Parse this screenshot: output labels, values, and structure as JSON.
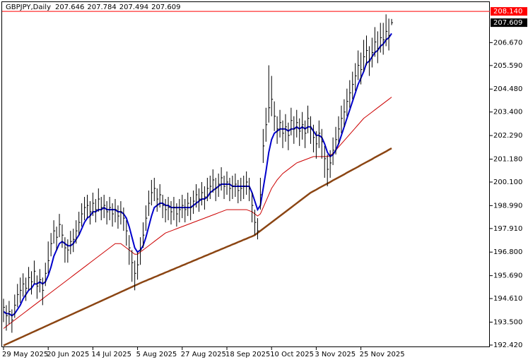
{
  "chart_data": {
    "type": "ohlc",
    "title": "GBPJPY,Daily",
    "header_quote": [
      207.646,
      207.784,
      207.494,
      207.609
    ],
    "categories": [
      "29 May 2025",
      null,
      null,
      null,
      null,
      null,
      null,
      null,
      null,
      null,
      null,
      null,
      null,
      null,
      null,
      null,
      "20 Jun 2025",
      null,
      null,
      null,
      null,
      null,
      null,
      null,
      null,
      null,
      null,
      null,
      null,
      null,
      null,
      null,
      "14 Jul 2025",
      null,
      null,
      null,
      null,
      null,
      null,
      null,
      null,
      null,
      null,
      null,
      null,
      null,
      null,
      null,
      "5 Aug 2025",
      null,
      null,
      null,
      null,
      null,
      null,
      null,
      null,
      null,
      null,
      null,
      null,
      null,
      null,
      null,
      "27 Aug 2025",
      null,
      null,
      null,
      null,
      null,
      null,
      null,
      null,
      null,
      null,
      null,
      null,
      null,
      null,
      null,
      "18 Sep 2025",
      null,
      null,
      null,
      null,
      null,
      null,
      null,
      null,
      null,
      null,
      null,
      null,
      null,
      null,
      null,
      "10 Oct 2025",
      null,
      null,
      null,
      null,
      null,
      null,
      null,
      null,
      null,
      null,
      null,
      null,
      null,
      null,
      null,
      "3 Nov 2025",
      null,
      null,
      null,
      null,
      null,
      null,
      null,
      null,
      null,
      null,
      null,
      null,
      null,
      null,
      null,
      "25 Nov 2025",
      null,
      null,
      null,
      null,
      null,
      null,
      null,
      null,
      null,
      null,
      null
    ],
    "high": [
      194.6,
      194.3,
      194.5,
      194.1,
      194.8,
      195.3,
      195.6,
      195.8,
      195.6,
      196.1,
      195.9,
      196.4,
      195.7,
      196.0,
      195.6,
      196.3,
      197.3,
      197.7,
      198.3,
      198.0,
      198.6,
      198.1,
      197.5,
      197.4,
      197.8,
      197.9,
      198.3,
      198.7,
      199.1,
      199.4,
      199.5,
      199.2,
      199.6,
      199.3,
      199.8,
      199.4,
      199.5,
      199.2,
      199.4,
      199.1,
      199.3,
      199.0,
      199.2,
      198.9,
      198.3,
      197.6,
      196.9,
      196.4,
      196.8,
      197.5,
      198.2,
      199.0,
      199.7,
      200.2,
      200.3,
      199.8,
      200.0,
      199.5,
      199.3,
      199.4,
      199.2,
      199.4,
      199.1,
      199.3,
      199.5,
      199.3,
      199.6,
      199.4,
      199.7,
      200.0,
      199.8,
      200.1,
      199.9,
      200.3,
      200.4,
      200.7,
      200.3,
      200.5,
      200.8,
      200.4,
      200.6,
      200.3,
      200.4,
      200.5,
      200.2,
      200.3,
      200.4,
      200.6,
      200.3,
      199.6,
      198.8,
      198.4,
      200.3,
      202.6,
      203.6,
      205.6,
      205.1,
      203.9,
      203.2,
      203.5,
      203.0,
      203.3,
      202.9,
      203.6,
      203.2,
      203.5,
      203.1,
      203.4,
      203.0,
      203.7,
      203.2,
      202.8,
      202.5,
      203.0,
      202.6,
      201.8,
      201.4,
      201.6,
      202.2,
      202.7,
      203.2,
      203.7,
      204.0,
      204.5,
      204.9,
      205.3,
      205.7,
      206.3,
      206.2,
      206.8,
      207.0,
      206.5,
      206.9,
      207.4,
      207.2,
      207.6,
      207.6,
      208.0,
      207.8,
      207.784
    ],
    "low": [
      193.5,
      193.1,
      193.4,
      193.0,
      193.7,
      194.2,
      194.4,
      194.7,
      194.5,
      195.0,
      194.8,
      195.3,
      194.6,
      194.9,
      194.3,
      195.2,
      195.8,
      196.6,
      197.2,
      196.9,
      197.5,
      197.0,
      196.3,
      196.3,
      196.7,
      196.8,
      197.2,
      197.6,
      198.0,
      198.3,
      198.4,
      198.1,
      198.5,
      198.2,
      198.7,
      198.3,
      198.4,
      198.1,
      198.3,
      198.0,
      198.2,
      197.9,
      198.1,
      197.8,
      197.1,
      196.2,
      195.4,
      195.0,
      195.5,
      196.2,
      197.0,
      197.8,
      198.5,
      199.0,
      199.2,
      198.7,
      198.9,
      198.4,
      198.2,
      198.3,
      198.1,
      198.3,
      198.0,
      198.2,
      198.4,
      198.2,
      198.5,
      198.3,
      198.6,
      198.9,
      198.7,
      199.0,
      198.8,
      199.2,
      199.3,
      199.6,
      199.2,
      199.4,
      199.7,
      199.3,
      199.5,
      199.2,
      199.3,
      199.4,
      199.1,
      199.2,
      199.3,
      199.5,
      199.2,
      198.2,
      197.6,
      197.4,
      198.8,
      201.0,
      202.0,
      202.9,
      203.2,
      202.5,
      201.9,
      202.2,
      201.7,
      202.0,
      201.6,
      202.3,
      201.9,
      202.2,
      201.8,
      202.1,
      201.7,
      202.4,
      201.9,
      201.5,
      201.2,
      201.7,
      201.2,
      200.3,
      199.9,
      200.3,
      200.9,
      201.4,
      201.9,
      202.4,
      202.7,
      203.2,
      203.6,
      204.0,
      204.4,
      204.9,
      204.7,
      205.3,
      205.6,
      205.1,
      205.5,
      206.0,
      205.7,
      206.2,
      206.1,
      206.5,
      206.3,
      207.494
    ],
    "close": [
      194.2,
      193.8,
      194.0,
      193.6,
      194.3,
      194.8,
      195.0,
      195.3,
      195.1,
      195.6,
      195.4,
      195.9,
      195.2,
      195.5,
      195.0,
      195.8,
      196.4,
      197.2,
      197.8,
      197.5,
      198.1,
      197.6,
      197.0,
      196.9,
      197.3,
      197.4,
      197.8,
      198.2,
      198.6,
      198.9,
      199.0,
      198.7,
      199.1,
      198.8,
      199.3,
      198.9,
      199.0,
      198.7,
      198.9,
      198.6,
      198.8,
      198.5,
      198.7,
      198.4,
      197.8,
      197.0,
      196.3,
      195.8,
      196.2,
      196.9,
      197.6,
      198.4,
      199.1,
      199.6,
      199.8,
      199.3,
      199.5,
      199.0,
      198.8,
      198.9,
      198.7,
      198.9,
      198.6,
      198.8,
      199.0,
      198.8,
      199.1,
      198.9,
      199.2,
      199.5,
      199.3,
      199.6,
      199.4,
      199.8,
      199.9,
      200.2,
      199.8,
      200.0,
      200.3,
      199.9,
      200.1,
      199.8,
      199.9,
      200.0,
      199.7,
      199.8,
      199.9,
      200.1,
      199.8,
      199.0,
      198.2,
      197.8,
      199.5,
      201.8,
      202.8,
      203.6,
      204.0,
      203.2,
      202.6,
      202.9,
      202.4,
      202.7,
      202.3,
      203.0,
      202.6,
      202.9,
      202.5,
      202.8,
      202.4,
      203.1,
      202.6,
      202.2,
      201.9,
      202.4,
      202.0,
      201.2,
      200.7,
      201.0,
      201.6,
      202.1,
      202.6,
      203.1,
      203.4,
      203.9,
      204.3,
      204.7,
      205.1,
      205.6,
      205.4,
      206.0,
      206.3,
      205.8,
      206.2,
      206.7,
      206.4,
      206.9,
      206.8,
      207.2,
      207.0,
      207.609
    ],
    "bar_color": "#000000",
    "lines": [
      {
        "color": "#8b4513",
        "values": [
          192.4,
          192.46,
          192.52,
          192.58,
          192.64,
          192.7,
          192.76,
          192.82,
          192.88,
          192.94,
          193.0,
          193.06,
          193.12,
          193.18,
          193.24,
          193.3,
          193.36,
          193.42,
          193.48,
          193.54,
          193.6,
          193.66,
          193.72,
          193.78,
          193.84,
          193.9,
          193.96,
          194.02,
          194.08,
          194.14,
          194.2,
          194.26,
          194.32,
          194.38,
          194.44,
          194.5,
          194.56,
          194.62,
          194.68,
          194.74,
          194.8,
          194.86,
          194.92,
          194.98,
          195.04,
          195.1,
          195.16,
          195.22,
          195.28,
          195.34,
          195.4,
          195.45,
          195.51,
          195.56,
          195.62,
          195.67,
          195.73,
          195.78,
          195.84,
          195.89,
          195.95,
          196.0,
          196.06,
          196.11,
          196.17,
          196.22,
          196.28,
          196.33,
          196.39,
          196.44,
          196.5,
          196.55,
          196.61,
          196.66,
          196.72,
          196.77,
          196.83,
          196.88,
          196.94,
          196.99,
          197.05,
          197.1,
          197.16,
          197.21,
          197.27,
          197.32,
          197.38,
          197.43,
          197.49,
          197.54,
          197.6,
          197.7,
          197.8,
          197.9,
          198.0,
          198.1,
          198.2,
          198.3,
          198.4,
          198.5,
          198.6,
          198.7,
          198.8,
          198.9,
          199.0,
          199.1,
          199.2,
          199.3,
          199.4,
          199.5,
          199.6,
          199.67,
          199.74,
          199.82,
          199.89,
          199.96,
          200.03,
          200.1,
          200.18,
          200.25,
          200.32,
          200.39,
          200.46,
          200.54,
          200.61,
          200.68,
          200.75,
          200.82,
          200.9,
          200.97,
          201.04,
          201.11,
          201.18,
          201.26,
          201.33,
          201.4,
          201.47,
          201.54,
          201.62,
          201.69
        ],
        "width": 2.5
      },
      {
        "color": "#cc0000",
        "values": [
          193.2,
          193.3,
          193.4,
          193.5,
          193.6,
          193.7,
          193.8,
          193.9,
          194.0,
          194.1,
          194.2,
          194.3,
          194.4,
          194.5,
          194.6,
          194.7,
          194.8,
          194.9,
          195.0,
          195.1,
          195.2,
          195.3,
          195.4,
          195.5,
          195.6,
          195.7,
          195.8,
          195.9,
          196.0,
          196.1,
          196.2,
          196.3,
          196.4,
          196.5,
          196.6,
          196.7,
          196.8,
          196.9,
          197.0,
          197.1,
          197.2,
          197.2,
          197.2,
          197.1,
          197.0,
          196.9,
          196.8,
          196.7,
          196.7,
          196.8,
          196.9,
          197.0,
          197.1,
          197.2,
          197.3,
          197.4,
          197.5,
          197.6,
          197.7,
          197.75,
          197.8,
          197.85,
          197.9,
          197.95,
          198.0,
          198.05,
          198.1,
          198.15,
          198.2,
          198.25,
          198.3,
          198.35,
          198.4,
          198.45,
          198.5,
          198.55,
          198.6,
          198.65,
          198.7,
          198.75,
          198.8,
          198.8,
          198.8,
          198.8,
          198.8,
          198.8,
          198.8,
          198.8,
          198.75,
          198.7,
          198.6,
          198.5,
          198.6,
          198.9,
          199.2,
          199.5,
          199.8,
          200.0,
          200.2,
          200.35,
          200.5,
          200.6,
          200.7,
          200.8,
          200.9,
          201.0,
          201.05,
          201.1,
          201.15,
          201.2,
          201.25,
          201.3,
          201.3,
          201.3,
          201.3,
          201.3,
          201.3,
          201.35,
          201.45,
          201.6,
          201.75,
          201.9,
          202.05,
          202.2,
          202.35,
          202.5,
          202.65,
          202.8,
          202.95,
          203.1,
          203.2,
          203.3,
          203.4,
          203.5,
          203.6,
          203.7,
          203.8,
          203.9,
          204.0,
          204.1
        ],
        "width": 1
      },
      {
        "color": "#0000cc",
        "values": [
          194.0,
          193.9,
          193.9,
          193.8,
          193.9,
          194.1,
          194.3,
          194.6,
          194.8,
          195.0,
          195.1,
          195.3,
          195.3,
          195.4,
          195.3,
          195.4,
          195.7,
          196.1,
          196.6,
          196.9,
          197.2,
          197.3,
          197.2,
          197.1,
          197.1,
          197.2,
          197.4,
          197.6,
          197.9,
          198.2,
          198.4,
          198.5,
          198.7,
          198.7,
          198.8,
          198.8,
          198.9,
          198.8,
          198.8,
          198.8,
          198.8,
          198.7,
          198.7,
          198.6,
          198.4,
          198.0,
          197.5,
          197.0,
          196.8,
          196.9,
          197.1,
          197.5,
          198.0,
          198.5,
          198.9,
          199.0,
          199.1,
          199.1,
          199.0,
          199.0,
          198.9,
          198.9,
          198.9,
          198.9,
          198.9,
          198.9,
          198.9,
          198.9,
          199.0,
          199.1,
          199.2,
          199.3,
          199.3,
          199.4,
          199.6,
          199.7,
          199.8,
          199.9,
          200.0,
          200.0,
          200.0,
          200.0,
          199.9,
          199.9,
          199.9,
          199.9,
          199.9,
          199.9,
          199.9,
          199.6,
          199.2,
          198.8,
          199.0,
          199.8,
          200.6,
          201.5,
          202.1,
          202.4,
          202.5,
          202.6,
          202.6,
          202.6,
          202.5,
          202.6,
          202.6,
          202.7,
          202.6,
          202.7,
          202.6,
          202.7,
          202.7,
          202.5,
          202.3,
          202.3,
          202.2,
          201.9,
          201.5,
          201.3,
          201.4,
          201.6,
          201.9,
          202.3,
          202.7,
          203.1,
          203.5,
          203.9,
          204.3,
          204.7,
          205.0,
          205.3,
          205.7,
          205.8,
          206.0,
          206.2,
          206.3,
          206.5,
          206.6,
          206.8,
          206.9,
          207.1
        ],
        "width": 2
      }
    ],
    "level": {
      "value": 208.14,
      "label": "208.140",
      "color": "#ff0000"
    },
    "ylim": [
      192.32,
      208.61
    ],
    "yticks": [
      {
        "value": 206.67,
        "label": "206.670"
      },
      {
        "value": 205.59,
        "label": "205.590"
      },
      {
        "value": 204.48,
        "label": "204.480"
      },
      {
        "value": 203.4,
        "label": "203.400"
      },
      {
        "value": 202.29,
        "label": "202.290"
      },
      {
        "value": 201.18,
        "label": "201.180"
      },
      {
        "value": 200.1,
        "label": "200.100"
      },
      {
        "value": 198.99,
        "label": "198.990"
      },
      {
        "value": 197.91,
        "label": "197.910"
      },
      {
        "value": 196.8,
        "label": "196.800"
      },
      {
        "value": 195.69,
        "label": "195.690"
      },
      {
        "value": 194.61,
        "label": "194.610"
      },
      {
        "value": 193.5,
        "label": "193.500"
      },
      {
        "value": 192.42,
        "label": "192.420"
      }
    ]
  }
}
